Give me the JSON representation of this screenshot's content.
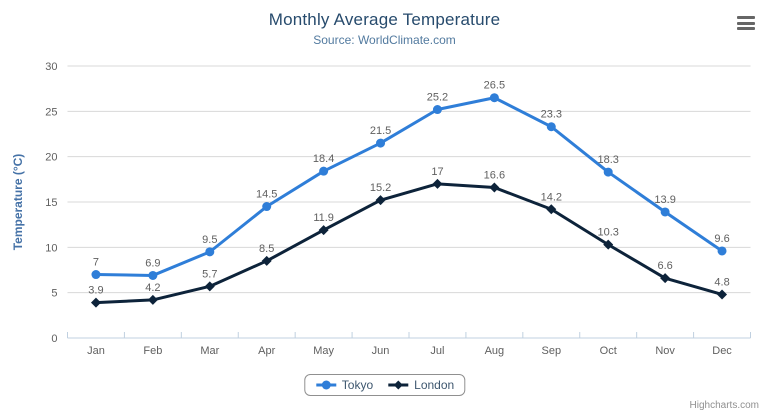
{
  "credits": "Highcharts.com",
  "menu": {
    "icon": "hamburger-menu-icon"
  },
  "colors": {
    "title": "#274b6d",
    "subtitle": "#527a9f",
    "axis_title": "#4572a7",
    "axis_label": "#606060",
    "grid": "#d8d8d8",
    "axis_line": "#c0d0e0",
    "tick": "#c0d0e0",
    "data_label": "#606060",
    "legend_text": "#3e576f",
    "legend_border": "#909090",
    "credits": "#909090",
    "menu_icon": "#666666"
  },
  "chart_data": {
    "type": "line",
    "title": "Monthly Average Temperature",
    "subtitle": "Source: WorldClimate.com",
    "xlabel": "",
    "ylabel": "Temperature (°C)",
    "ylim": [
      0,
      30
    ],
    "yticks": [
      0,
      5,
      10,
      15,
      20,
      25,
      30
    ],
    "grid": true,
    "legend_position": "bottom",
    "categories": [
      "Jan",
      "Feb",
      "Mar",
      "Apr",
      "May",
      "Jun",
      "Jul",
      "Aug",
      "Sep",
      "Oct",
      "Nov",
      "Dec"
    ],
    "series": [
      {
        "name": "Tokyo",
        "color": "#2f7ed8",
        "marker": "circle",
        "values": [
          7,
          6.9,
          9.5,
          14.5,
          18.4,
          21.5,
          25.2,
          26.5,
          23.3,
          18.3,
          13.9,
          9.6
        ]
      },
      {
        "name": "London",
        "color": "#0d233a",
        "marker": "diamond",
        "values": [
          3.9,
          4.2,
          5.7,
          8.5,
          11.9,
          15.2,
          17,
          16.6,
          14.2,
          10.3,
          6.6,
          4.8
        ]
      }
    ]
  }
}
